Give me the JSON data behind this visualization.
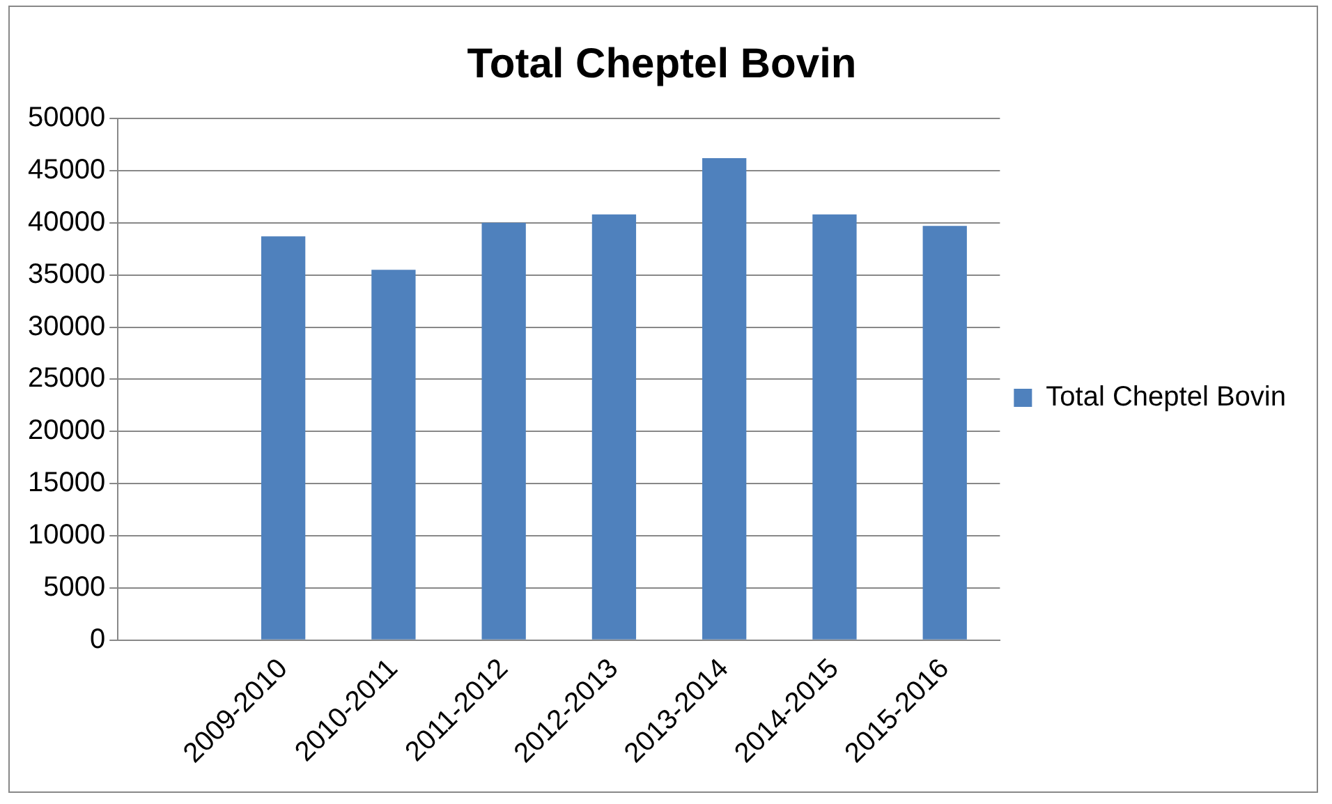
{
  "chart_data": {
    "type": "bar",
    "title": "Total Cheptel Bovin",
    "categories": [
      null,
      "2009-2010",
      "2010-2011",
      "2011-2012",
      "2012-2013",
      "2013-2014",
      "2014-2015",
      "2015-2016"
    ],
    "series": [
      {
        "name": "Total Cheptel Bovin",
        "color": "#4f81bd",
        "values": [
          null,
          38700,
          35500,
          40000,
          40800,
          46200,
          40800,
          39700
        ]
      }
    ],
    "ylim": [
      0,
      50000
    ],
    "yticks": [
      0,
      5000,
      10000,
      15000,
      20000,
      25000,
      30000,
      35000,
      40000,
      45000,
      50000
    ],
    "grid": "y",
    "legend": "right"
  }
}
